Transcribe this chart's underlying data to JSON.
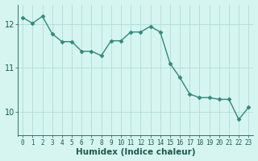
{
  "x": [
    0,
    1,
    2,
    3,
    4,
    5,
    6,
    7,
    8,
    9,
    10,
    11,
    12,
    13,
    14,
    15,
    16,
    17,
    18,
    19,
    20,
    21,
    22,
    23
  ],
  "y": [
    12.15,
    12.02,
    12.18,
    11.78,
    11.6,
    11.6,
    11.38,
    11.38,
    11.28,
    11.62,
    11.62,
    11.82,
    11.82,
    11.95,
    11.82,
    11.1,
    10.78,
    10.4,
    10.32,
    10.32,
    10.28,
    10.28,
    9.82,
    10.1
  ],
  "line_color": "#2e8b7a",
  "marker": "D",
  "marker_size": 2.5,
  "line_width": 1.0,
  "xlabel": "Humidex (Indice chaleur)",
  "xlabel_fontsize": 7.5,
  "xlabel_color": "#1a5c4a",
  "xlabel_bold": true,
  "background_color": "#d6f5f0",
  "grid_color": "#b0ddd6",
  "tick_color": "#1a5c4a",
  "ytick_labels": [
    "10",
    "11",
    "12"
  ],
  "yticks": [
    10,
    11,
    12
  ],
  "ylim": [
    9.45,
    12.45
  ],
  "xlim": [
    -0.5,
    23.5
  ],
  "xtick_fontsize": 5.5,
  "ytick_fontsize": 7.0
}
